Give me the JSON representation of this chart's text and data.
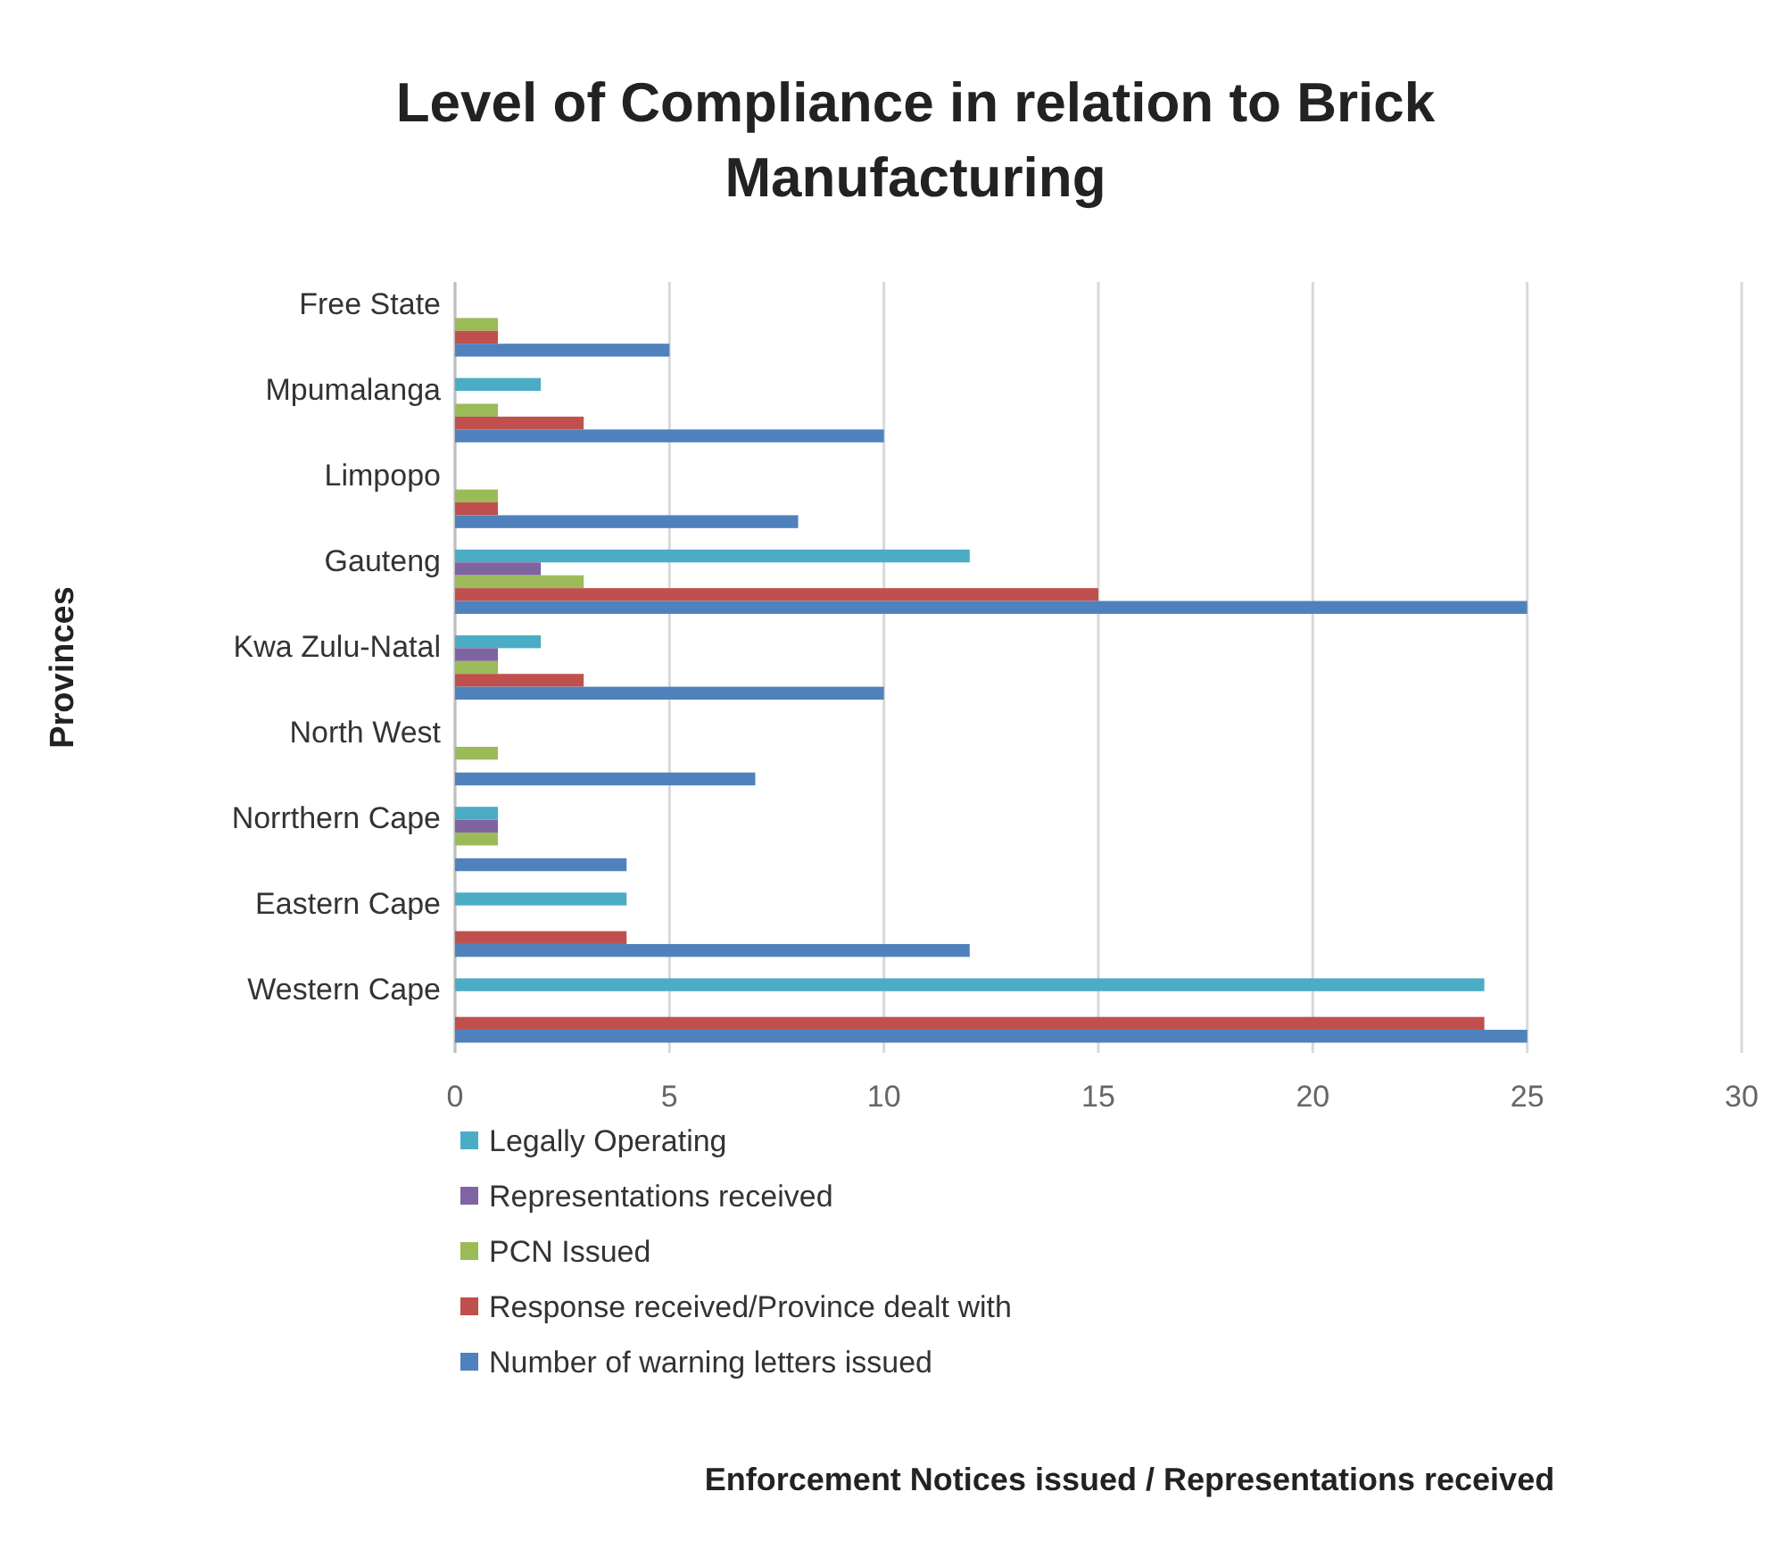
{
  "chart_data": {
    "type": "bar",
    "orientation": "horizontal",
    "title": "Level of Compliance in relation to Brick Manufacturing",
    "annotations": [
      "Enforcement Notices issued / Representations received"
    ],
    "ylabel": "Provinces",
    "categories": [
      "Free State",
      "Mpumalanga",
      "Limpopo",
      "Gauteng",
      "Kwa Zulu-Natal",
      "North West",
      "Norrthern Cape",
      "Eastern Cape",
      "Western Cape"
    ],
    "series": [
      {
        "name": "Legally Operating",
        "color": "#4bacc6",
        "values": [
          0,
          2,
          0,
          12,
          2,
          0,
          1,
          4,
          24
        ]
      },
      {
        "name": "Representations received",
        "color": "#8064a2",
        "values": [
          0,
          0,
          0,
          2,
          1,
          0,
          1,
          0,
          0
        ]
      },
      {
        "name": "PCN Issued",
        "color": "#9bbb59",
        "values": [
          1,
          1,
          1,
          3,
          1,
          1,
          1,
          0,
          0
        ]
      },
      {
        "name": "Response received/Province dealt with",
        "color": "#c0504d",
        "values": [
          1,
          3,
          1,
          15,
          3,
          0,
          0,
          4,
          24
        ]
      },
      {
        "name": "Number of warning letters issued",
        "color": "#4f81bd",
        "values": [
          5,
          10,
          8,
          25,
          10,
          7,
          4,
          12,
          25
        ]
      }
    ],
    "xlim": [
      0,
      30
    ],
    "xticks": [
      0,
      5,
      10,
      15,
      20,
      25,
      30
    ],
    "grid": "x",
    "legend": "bottom"
  }
}
